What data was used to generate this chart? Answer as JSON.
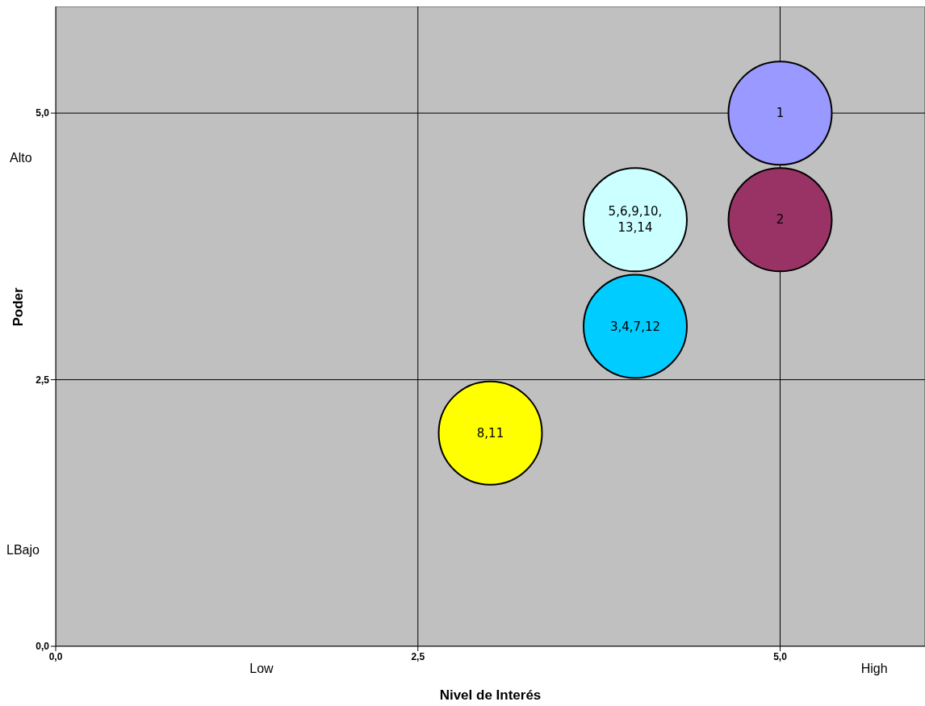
{
  "chart_data": {
    "type": "bubble",
    "xlabel": "Nivel de Interés",
    "ylabel": "Poder",
    "x": [
      5.0,
      5.0,
      4.0,
      4.0,
      3.0
    ],
    "values": [
      5.0,
      4.0,
      4.0,
      3.0,
      2.0
    ],
    "sizes": [
      1,
      1,
      1,
      1,
      1
    ],
    "colors": [
      "#9999ff",
      "#993366",
      "#ccffff",
      "#00ccff",
      "#ffff00"
    ],
    "xlim": [
      0,
      6
    ],
    "ylim": [
      0,
      6
    ],
    "xticks": [
      {
        "value": 0,
        "label": "0,0"
      },
      {
        "value": 2.5,
        "label": "2,5"
      },
      {
        "value": 5,
        "label": "5,0"
      }
    ],
    "yticks": [
      {
        "value": 0,
        "label": "0,0"
      },
      {
        "value": 2.5,
        "label": "2,5"
      },
      {
        "value": 5,
        "label": "5,0"
      }
    ],
    "grid": true,
    "annotations": [
      "Alto",
      "LBajo",
      "Low",
      "High",
      {
        "text": "1",
        "x": 5.0,
        "y": 5.0
      },
      {
        "text": "2",
        "x": 5.0,
        "y": 4.0
      },
      {
        "text": "5,6,9,10,13,14",
        "x": 4.0,
        "y": 4.0
      },
      {
        "text": "3,4,7,12",
        "x": 4.0,
        "y": 3.0
      },
      {
        "text": "8,11",
        "x": 3.0,
        "y": 2.0
      }
    ]
  }
}
